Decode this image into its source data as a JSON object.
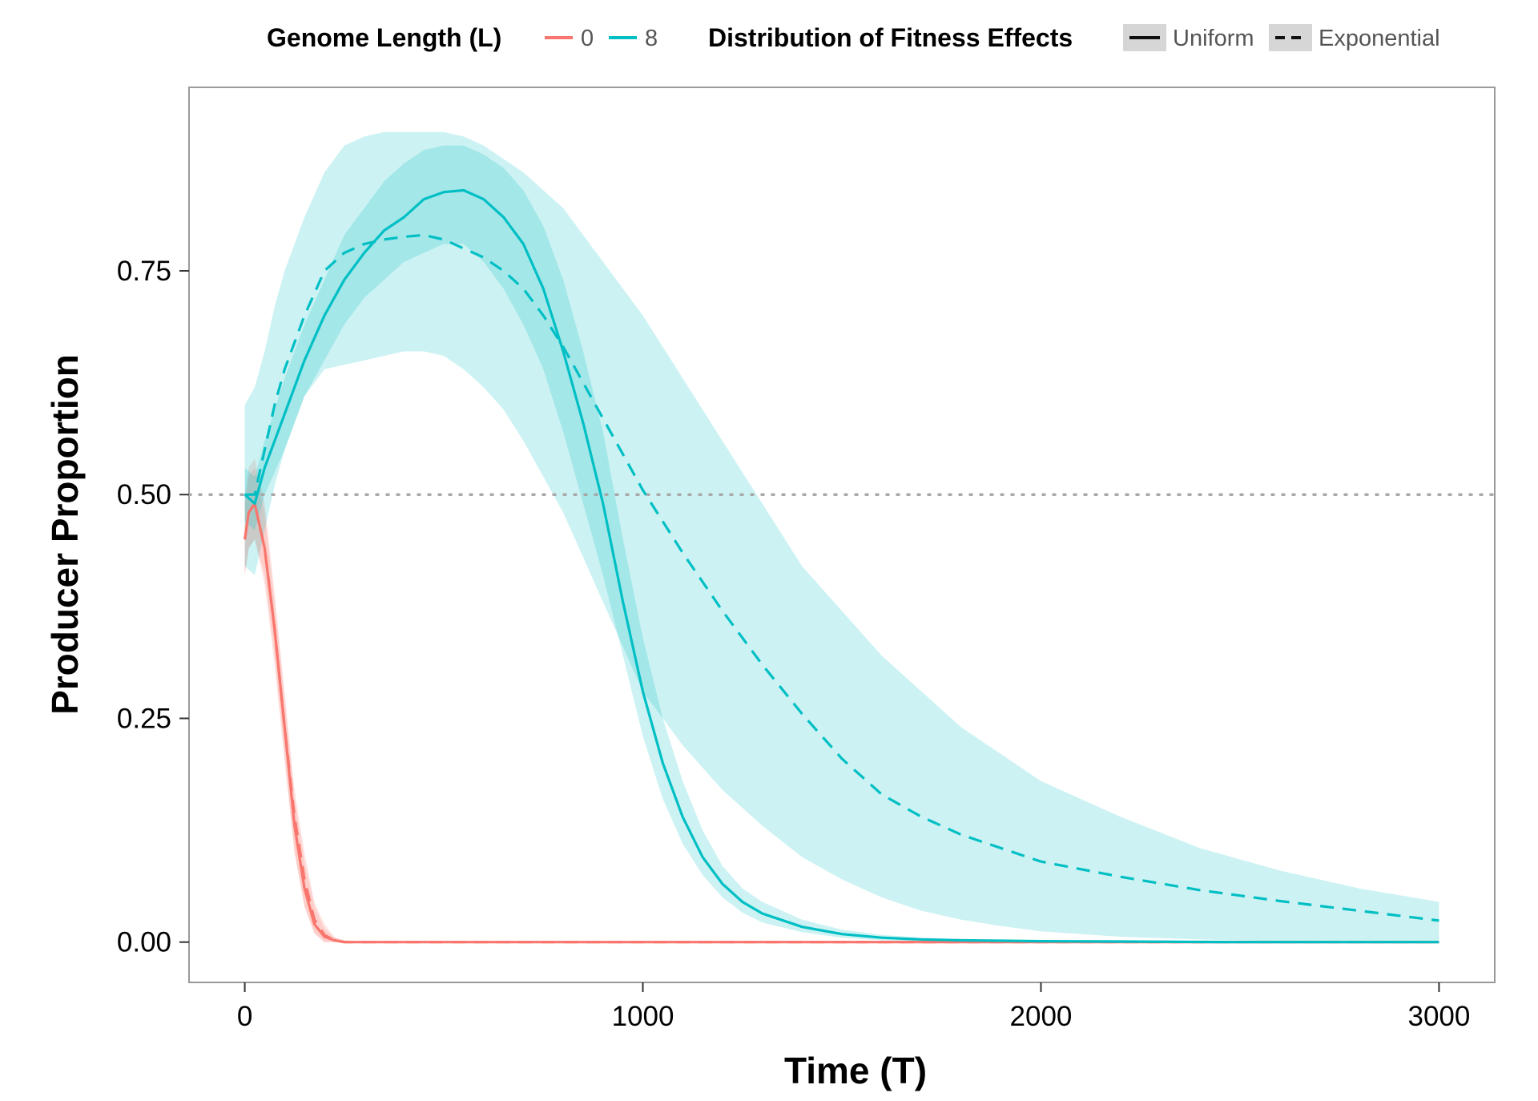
{
  "chart_data": {
    "type": "line",
    "xlabel": "Time (T)",
    "ylabel": "Producer Proportion",
    "xlim": [
      -140,
      3140
    ],
    "ylim": [
      -0.045,
      0.955
    ],
    "x_ticks": [
      0,
      1000,
      2000,
      3000
    ],
    "x_tick_labels": [
      "0",
      "1000",
      "2000",
      "3000"
    ],
    "y_ticks": [
      0,
      0.25,
      0.5,
      0.75
    ],
    "y_tick_labels": [
      "0.00",
      "0.25",
      "0.50",
      "0.75"
    ],
    "reference_line": {
      "y": 0.5,
      "style": "dotted"
    },
    "grid": false,
    "legend_position": "top",
    "legend": {
      "color_title": "Genome Length (L)",
      "color_entries": [
        {
          "label": "0",
          "color": "#F8766D"
        },
        {
          "label": "8",
          "color": "#00BFC4"
        }
      ],
      "linetype_title": "Distribution of Fitness Effects",
      "linetype_entries": [
        {
          "label": "Uniform",
          "dash": "solid"
        },
        {
          "label": "Exponential",
          "dash": "dashed"
        }
      ]
    },
    "series": [
      {
        "name": "0",
        "genome_length": "0",
        "dfe": "Uniform",
        "color": "#F8766D",
        "dash": "solid",
        "x": [
          0,
          10,
          25,
          50,
          75,
          100,
          125,
          150,
          175,
          200,
          225,
          250,
          300,
          500,
          1000,
          1500,
          2000,
          2500,
          3000
        ],
        "y": [
          0.45,
          0.48,
          0.49,
          0.44,
          0.35,
          0.24,
          0.13,
          0.06,
          0.02,
          0.006,
          0.002,
          0.0,
          0.0,
          0.0,
          0.0,
          0.0,
          0.0,
          0.0,
          0.0
        ],
        "lower": [
          0.41,
          0.44,
          0.45,
          0.41,
          0.32,
          0.21,
          0.1,
          0.04,
          0.01,
          0.0,
          0.0,
          0.0,
          0.0,
          0.0,
          0.0,
          0.0,
          0.0,
          0.0,
          0.0
        ],
        "upper": [
          0.49,
          0.52,
          0.53,
          0.48,
          0.38,
          0.27,
          0.16,
          0.09,
          0.04,
          0.015,
          0.005,
          0.002,
          0.0,
          0.0,
          0.0,
          0.0,
          0.0,
          0.0,
          0.0
        ]
      },
      {
        "name": "0",
        "genome_length": "0",
        "dfe": "Exponential",
        "color": "#F8766D",
        "dash": "dashed",
        "x": [
          0,
          10,
          25,
          50,
          75,
          100,
          125,
          150,
          175,
          200,
          225,
          250,
          300,
          500,
          1000,
          1500,
          2000,
          2500,
          3000
        ],
        "y": [
          0.45,
          0.48,
          0.49,
          0.44,
          0.35,
          0.24,
          0.14,
          0.07,
          0.025,
          0.008,
          0.002,
          0.0,
          0.0,
          0.0,
          0.0,
          0.0,
          0.0,
          0.0,
          0.0
        ],
        "lower": [
          0.41,
          0.44,
          0.45,
          0.4,
          0.31,
          0.2,
          0.1,
          0.04,
          0.01,
          0.0,
          0.0,
          0.0,
          0.0,
          0.0,
          0.0,
          0.0,
          0.0,
          0.0,
          0.0
        ],
        "upper": [
          0.5,
          0.53,
          0.54,
          0.49,
          0.39,
          0.28,
          0.17,
          0.1,
          0.045,
          0.02,
          0.006,
          0.002,
          0.0,
          0.0,
          0.0,
          0.0,
          0.0,
          0.0,
          0.0
        ]
      },
      {
        "name": "8",
        "genome_length": "8",
        "dfe": "Uniform",
        "color": "#00BFC4",
        "dash": "solid",
        "x": [
          0,
          25,
          50,
          100,
          150,
          200,
          250,
          300,
          350,
          400,
          450,
          500,
          550,
          600,
          650,
          700,
          750,
          800,
          850,
          900,
          950,
          1000,
          1050,
          1100,
          1150,
          1200,
          1250,
          1300,
          1400,
          1500,
          1600,
          1700,
          1800,
          2000,
          2500,
          3000
        ],
        "y": [
          0.5,
          0.49,
          0.53,
          0.59,
          0.65,
          0.7,
          0.74,
          0.77,
          0.795,
          0.81,
          0.83,
          0.838,
          0.84,
          0.83,
          0.81,
          0.78,
          0.73,
          0.66,
          0.58,
          0.49,
          0.38,
          0.28,
          0.2,
          0.14,
          0.095,
          0.065,
          0.045,
          0.032,
          0.017,
          0.009,
          0.005,
          0.003,
          0.002,
          0.001,
          0.0,
          0.0
        ],
        "lower": [
          0.47,
          0.46,
          0.5,
          0.55,
          0.61,
          0.65,
          0.69,
          0.72,
          0.74,
          0.76,
          0.77,
          0.78,
          0.78,
          0.76,
          0.73,
          0.69,
          0.64,
          0.57,
          0.49,
          0.41,
          0.32,
          0.23,
          0.16,
          0.11,
          0.075,
          0.05,
          0.033,
          0.022,
          0.011,
          0.005,
          0.002,
          0.001,
          0.0,
          0.0,
          0.0,
          0.0
        ],
        "upper": [
          0.53,
          0.52,
          0.56,
          0.63,
          0.69,
          0.74,
          0.79,
          0.82,
          0.85,
          0.87,
          0.885,
          0.89,
          0.89,
          0.88,
          0.865,
          0.84,
          0.8,
          0.74,
          0.66,
          0.57,
          0.45,
          0.34,
          0.25,
          0.18,
          0.125,
          0.085,
          0.06,
          0.045,
          0.025,
          0.014,
          0.008,
          0.005,
          0.003,
          0.002,
          0.001,
          0.0
        ]
      },
      {
        "name": "8",
        "genome_length": "8",
        "dfe": "Exponential",
        "color": "#00BFC4",
        "dash": "dashed",
        "x": [
          0,
          25,
          50,
          75,
          100,
          150,
          200,
          250,
          300,
          350,
          400,
          450,
          500,
          550,
          600,
          650,
          700,
          750,
          800,
          850,
          900,
          950,
          1000,
          1100,
          1200,
          1300,
          1400,
          1500,
          1600,
          1700,
          1800,
          1900,
          2000,
          2200,
          2400,
          2600,
          2800,
          3000
        ],
        "y": [
          0.5,
          0.5,
          0.55,
          0.6,
          0.64,
          0.7,
          0.75,
          0.77,
          0.78,
          0.785,
          0.788,
          0.79,
          0.785,
          0.775,
          0.765,
          0.75,
          0.73,
          0.7,
          0.665,
          0.625,
          0.585,
          0.545,
          0.505,
          0.435,
          0.37,
          0.31,
          0.255,
          0.205,
          0.165,
          0.14,
          0.12,
          0.105,
          0.09,
          0.073,
          0.058,
          0.046,
          0.035,
          0.024
        ],
        "lower": [
          0.42,
          0.41,
          0.46,
          0.51,
          0.55,
          0.61,
          0.64,
          0.645,
          0.65,
          0.655,
          0.66,
          0.66,
          0.655,
          0.64,
          0.62,
          0.595,
          0.56,
          0.52,
          0.48,
          0.43,
          0.38,
          0.33,
          0.28,
          0.22,
          0.17,
          0.13,
          0.095,
          0.07,
          0.05,
          0.035,
          0.025,
          0.018,
          0.012,
          0.006,
          0.003,
          0.001,
          0.0,
          0.0
        ],
        "upper": [
          0.6,
          0.62,
          0.66,
          0.71,
          0.75,
          0.81,
          0.86,
          0.89,
          0.9,
          0.905,
          0.905,
          0.905,
          0.905,
          0.9,
          0.89,
          0.875,
          0.86,
          0.84,
          0.82,
          0.79,
          0.76,
          0.73,
          0.7,
          0.63,
          0.56,
          0.49,
          0.42,
          0.37,
          0.32,
          0.28,
          0.24,
          0.21,
          0.18,
          0.14,
          0.105,
          0.08,
          0.06,
          0.045
        ]
      }
    ]
  }
}
